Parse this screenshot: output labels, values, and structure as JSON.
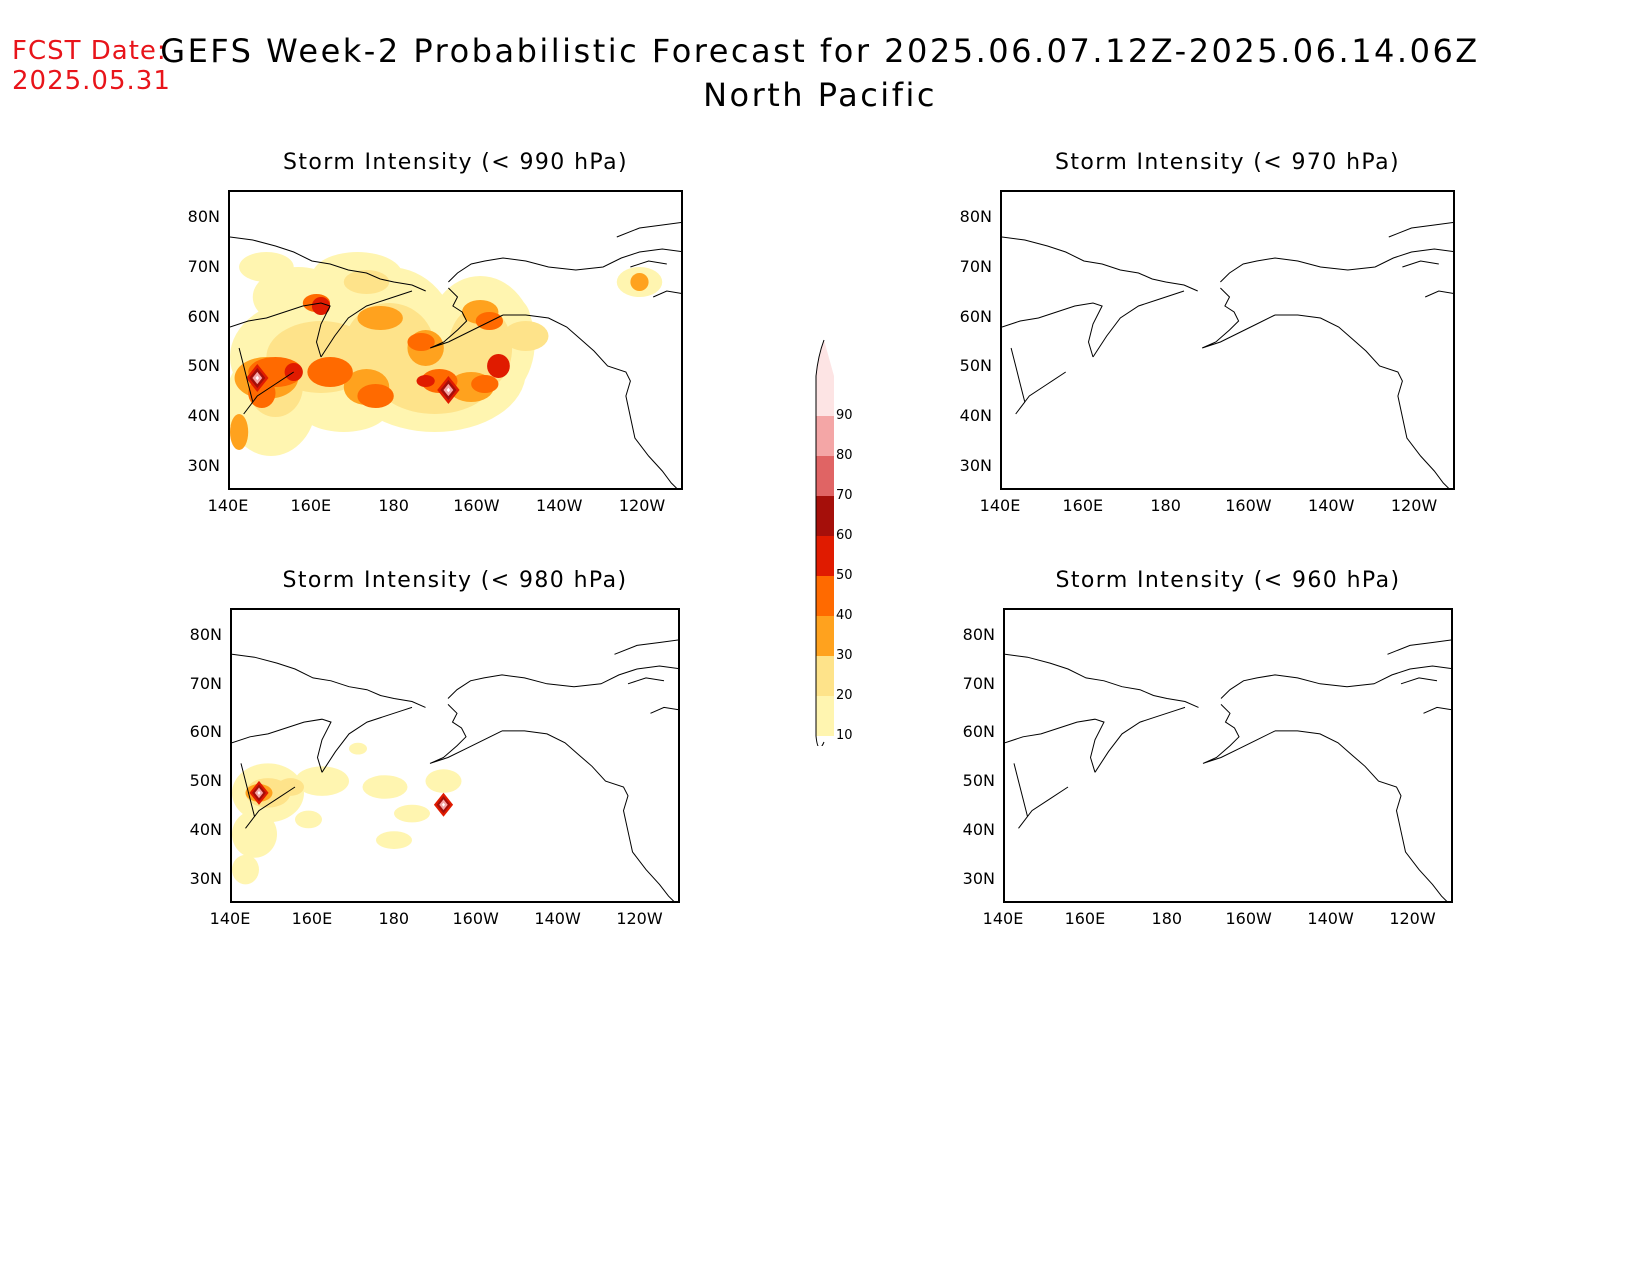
{
  "header": {
    "fcst_label": "FCST Date:",
    "fcst_date": "2025.05.31",
    "title_line1": "GEFS Week-2 Probabilistic Forecast for 2025.06.07.12Z-2025.06.14.06Z",
    "title_line2": "North Pacific"
  },
  "axes": {
    "lat_labels": [
      "80N",
      "70N",
      "60N",
      "50N",
      "40N",
      "30N"
    ],
    "lon_labels": [
      "140E",
      "160E",
      "180",
      "160W",
      "140W",
      "120W"
    ]
  },
  "panels": [
    {
      "id": "p990",
      "title": "Storm Intensity (< 990 hPa)",
      "coverage": "widespread"
    },
    {
      "id": "p970",
      "title": "Storm Intensity (< 970 hPa)",
      "coverage": "none"
    },
    {
      "id": "p980",
      "title": "Storm Intensity (< 980 hPa)",
      "coverage": "scattered"
    },
    {
      "id": "p960",
      "title": "Storm Intensity (< 960 hPa)",
      "coverage": "none"
    }
  ],
  "colorbar": {
    "levels": [
      "10",
      "20",
      "30",
      "40",
      "50",
      "60",
      "70",
      "80",
      "90"
    ],
    "colors": [
      "#fff5b0",
      "#fee38a",
      "#ffa21e",
      "#ff6a00",
      "#e01b00",
      "#a50f0a",
      "#e06464",
      "#f4a6a6",
      "#fde4e4"
    ]
  }
}
